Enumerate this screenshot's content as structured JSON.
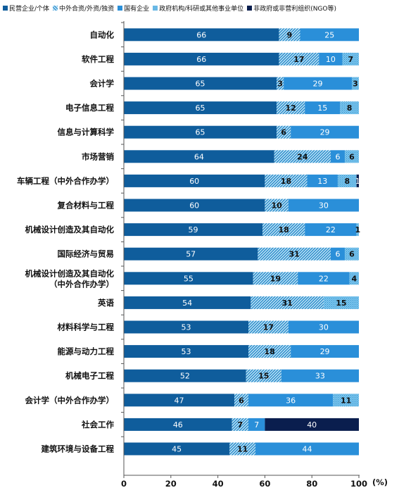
{
  "chart_data": {
    "type": "bar",
    "orientation": "horizontal",
    "stacked": true,
    "unit_label": "(%)",
    "categories": [
      "自动化",
      "软件工程",
      "会计学",
      "电子信息工程",
      "信息与计算科学",
      "市场营销",
      "车辆工程（中外合作办学）",
      "复合材料与工程",
      "机械设计创造及其自动化",
      "国际经济与贸易",
      "机械设计创造及其自动化（中外合作办学）",
      "英语",
      "材料科学与工程",
      "能源与动力工程",
      "机械电子工程",
      "会计学（中外合作办学）",
      "社会工作",
      "建筑环境与设备工程"
    ],
    "series": [
      {
        "name": "民营企业/个体",
        "color": "#0f5d9c",
        "pattern": "solid",
        "values": [
          66,
          66,
          65,
          65,
          65,
          64,
          60,
          60,
          59,
          57,
          55,
          54,
          53,
          53,
          52,
          47,
          46,
          45
        ]
      },
      {
        "name": "中外合资/外资/独资",
        "color": "#1b83c6",
        "pattern": "hatch",
        "values": [
          9,
          17,
          3,
          12,
          6,
          24,
          18,
          10,
          18,
          31,
          19,
          31,
          17,
          18,
          15,
          6,
          7,
          11
        ]
      },
      {
        "name": "国有企业",
        "color": "#2a8fd9",
        "pattern": "solid",
        "values": [
          25,
          10,
          29,
          15,
          29,
          6,
          13,
          30,
          22,
          6,
          22,
          0,
          30,
          29,
          33,
          36,
          7,
          44
        ]
      },
      {
        "name": "政府机构/科研或其他事业单位",
        "color": "#4cb0e6",
        "pattern": "dots",
        "values": [
          0,
          7,
          3,
          8,
          0,
          6,
          8,
          0,
          1,
          6,
          4,
          15,
          0,
          0,
          0,
          11,
          0,
          0
        ]
      },
      {
        "name": "非政府或非营利组织(NGO等)",
        "color": "#0a1e4e",
        "pattern": "solid",
        "values": [
          0,
          0,
          0,
          0,
          0,
          0,
          1,
          0,
          0,
          0,
          0,
          0,
          0,
          0,
          0,
          0,
          40,
          0
        ]
      }
    ],
    "value_labels": [
      [
        "66",
        "9",
        "25",
        "",
        ""
      ],
      [
        "66",
        "17",
        "10",
        "7",
        ""
      ],
      [
        "65",
        "3",
        "29",
        "3",
        ""
      ],
      [
        "65",
        "12",
        "15",
        "8",
        ""
      ],
      [
        "65",
        "6",
        "29",
        "",
        ""
      ],
      [
        "64",
        "24",
        "6",
        "6",
        ""
      ],
      [
        "60",
        "18",
        "13",
        "8",
        "1"
      ],
      [
        "60",
        "10",
        "30",
        "",
        ""
      ],
      [
        "59",
        "18",
        "22",
        "1",
        ""
      ],
      [
        "57",
        "31",
        "6",
        "6",
        ""
      ],
      [
        "55",
        "19",
        "22",
        "4",
        ""
      ],
      [
        "54",
        "31",
        "",
        "15",
        ""
      ],
      [
        "53",
        "17",
        "30",
        "",
        ""
      ],
      [
        "53",
        "18",
        "29",
        "",
        ""
      ],
      [
        "52",
        "15",
        "33",
        "",
        ""
      ],
      [
        "47",
        "6",
        "36",
        "11",
        ""
      ],
      [
        "46",
        "7",
        "7",
        "",
        "40"
      ],
      [
        "45",
        "11",
        "44",
        "",
        ""
      ]
    ],
    "xlim": [
      0,
      100
    ],
    "xticks": [
      0,
      20,
      40,
      60,
      80,
      100
    ],
    "grid": false,
    "legend_position": "top"
  }
}
